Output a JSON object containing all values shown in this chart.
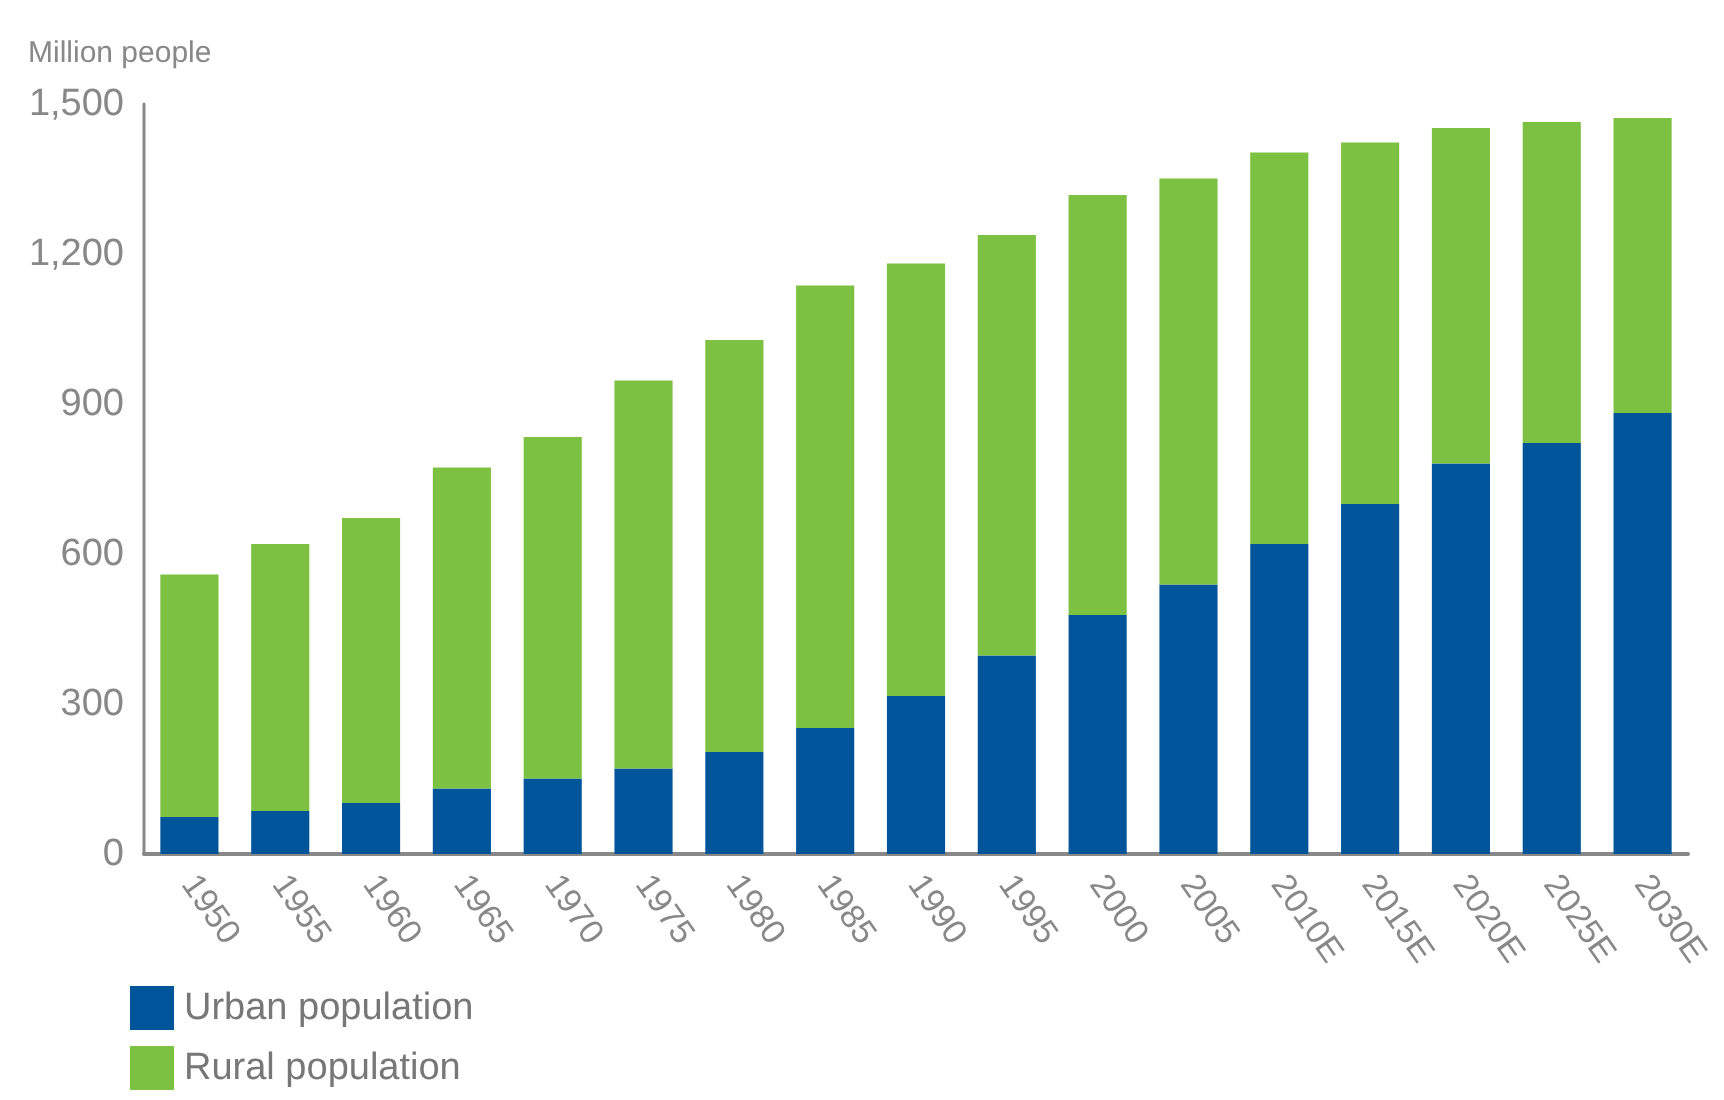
{
  "chart_data": {
    "type": "bar",
    "stacked": true,
    "ylabel": "Million people",
    "categories": [
      "1950",
      "1955",
      "1960",
      "1965",
      "1970",
      "1975",
      "1980",
      "1985",
      "1990",
      "1995",
      "2000",
      "2005",
      "2010E",
      "2015E",
      "2020E",
      "2025E",
      "2030E"
    ],
    "series": [
      {
        "name": "Urban population",
        "color": "#00559a",
        "values": [
          74,
          86,
          102,
          131,
          151,
          171,
          204,
          252,
          316,
          397,
          478,
          539,
          620,
          700,
          781,
          822,
          882
        ]
      },
      {
        "name": "Rural population",
        "color": "#7cc142",
        "values": [
          485,
          534,
          570,
          642,
          683,
          776,
          824,
          885,
          865,
          841,
          840,
          812,
          783,
          723,
          671,
          642,
          590
        ]
      }
    ],
    "ylim": [
      0,
      1500
    ],
    "yticks": [
      {
        "value": 0,
        "label": "0"
      },
      {
        "value": 300,
        "label": "300"
      },
      {
        "value": 600,
        "label": "600"
      },
      {
        "value": 900,
        "label": "900"
      },
      {
        "value": 1200,
        "label": "1,200"
      },
      {
        "value": 1500,
        "label": "1,500"
      }
    ],
    "grid": false,
    "legend": "bottom left"
  }
}
